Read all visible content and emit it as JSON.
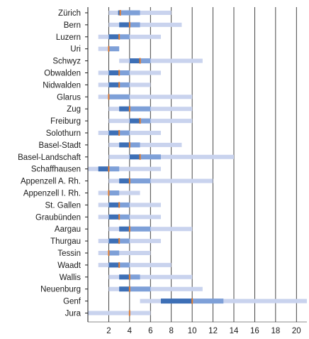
{
  "chart_data": {
    "type": "boxplot",
    "title": "",
    "xlabel": "",
    "ylabel": "",
    "xlim": [
      0,
      21
    ],
    "xticks": [
      2,
      4,
      6,
      8,
      10,
      12,
      14,
      16,
      18,
      20
    ],
    "grid": {
      "vertical": true,
      "horizontal": false
    },
    "legend": "none",
    "colors": {
      "whisker": "#c9d3ee",
      "box_lower": "#3d6fb6",
      "box_upper": "#7ea0d8",
      "median": "#e07b2e",
      "grid": "#1a1a1a",
      "axis": "#1a1a1a"
    },
    "categories": [
      "Zürich",
      "Bern",
      "Luzern",
      "Uri",
      "Schwyz",
      "Obwalden",
      "Nidwalden",
      "Glarus",
      "Zug",
      "Freiburg",
      "Solothurn",
      "Basel-Stadt",
      "Basel-Landschaft",
      "Schaffhausen",
      "Appenzell A. Rh.",
      "Appenzell I. Rh.",
      "St. Gallen",
      "Graubünden",
      "Aargau",
      "Thurgau",
      "Tessin",
      "Waadt",
      "Wallis",
      "Neuenburg",
      "Genf",
      "Jura"
    ],
    "boxes": [
      {
        "min": 2,
        "q1": 2.9,
        "median": 3.1,
        "q3": 5,
        "max": 8
      },
      {
        "min": 2,
        "q1": 3,
        "median": 4,
        "q3": 5,
        "max": 9
      },
      {
        "min": 1,
        "q1": 2,
        "median": 3,
        "q3": 4,
        "max": 7
      },
      {
        "min": 1,
        "q1": 2,
        "median": 2,
        "q3": 3,
        "max": 3
      },
      {
        "min": 3,
        "q1": 4,
        "median": 5,
        "q3": 6,
        "max": 11
      },
      {
        "min": 1,
        "q1": 2,
        "median": 3,
        "q3": 4,
        "max": 7
      },
      {
        "min": 1,
        "q1": 2,
        "median": 3,
        "q3": 4,
        "max": 6
      },
      {
        "min": 1,
        "q1": 2,
        "median": 2,
        "q3": 4,
        "max": 10
      },
      {
        "min": 2,
        "q1": 3,
        "median": 4,
        "q3": 6,
        "max": 10
      },
      {
        "min": 2,
        "q1": 4,
        "median": 5,
        "q3": 6,
        "max": 10
      },
      {
        "min": 1,
        "q1": 2,
        "median": 3,
        "q3": 4,
        "max": 7
      },
      {
        "min": 2,
        "q1": 3,
        "median": 4,
        "q3": 5,
        "max": 9
      },
      {
        "min": 2,
        "q1": 4,
        "median": 5,
        "q3": 7,
        "max": 14
      },
      {
        "min": 0,
        "q1": 1,
        "median": 2,
        "q3": 3,
        "max": 7
      },
      {
        "min": 2,
        "q1": 3,
        "median": 4,
        "q3": 6,
        "max": 12
      },
      {
        "min": 1,
        "q1": 2,
        "median": 2,
        "q3": 3,
        "max": 5
      },
      {
        "min": 1,
        "q1": 2,
        "median": 3,
        "q3": 4,
        "max": 7
      },
      {
        "min": 1,
        "q1": 2,
        "median": 3,
        "q3": 4,
        "max": 7
      },
      {
        "min": 2,
        "q1": 3,
        "median": 4,
        "q3": 6,
        "max": 10
      },
      {
        "min": 1,
        "q1": 2,
        "median": 3,
        "q3": 4,
        "max": 7
      },
      {
        "min": 1,
        "q1": 2,
        "median": 2,
        "q3": 3,
        "max": 6
      },
      {
        "min": 1,
        "q1": 2,
        "median": 3,
        "q3": 4,
        "max": 8
      },
      {
        "min": 2,
        "q1": 3,
        "median": 4,
        "q3": 5,
        "max": 10
      },
      {
        "min": 2,
        "q1": 3,
        "median": 4,
        "q3": 6,
        "max": 11
      },
      {
        "min": 5,
        "q1": 7,
        "median": 10,
        "q3": 13,
        "max": 21
      },
      {
        "min": 0,
        "q1": 4,
        "median": 4,
        "q3": 4,
        "max": 6
      }
    ]
  }
}
